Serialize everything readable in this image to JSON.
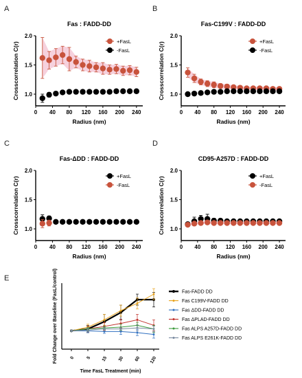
{
  "colors": {
    "red": "#c8533c",
    "red_band": "#f4c6d4",
    "black": "#000000",
    "e_black": "#000000",
    "e_yellow": "#e8a21a",
    "e_blue": "#2f6fc0",
    "e_red": "#c0302b",
    "e_green": "#3c9a3c",
    "e_gray": "#7a8aa0"
  },
  "chart_data": [
    {
      "panel": "A",
      "type": "scatter",
      "title": "Fas : FADD-DD",
      "xlabel": "Radius (nm)",
      "ylabel": "Crosscorrelation C(r)",
      "xlim": [
        0,
        255
      ],
      "ylim": [
        0.8,
        2.0
      ],
      "xticks": [
        0,
        40,
        80,
        120,
        160,
        200,
        240
      ],
      "yticks": [
        1.0,
        1.5,
        2.0
      ],
      "legend_position": "top-right",
      "series": [
        {
          "name": "+FasL",
          "color": "red",
          "x": [
            16,
            32,
            48,
            64,
            80,
            96,
            112,
            128,
            144,
            160,
            176,
            192,
            208,
            224,
            240,
            256
          ],
          "y": [
            1.62,
            1.58,
            1.63,
            1.67,
            1.6,
            1.55,
            1.5,
            1.48,
            1.46,
            1.44,
            1.42,
            1.43,
            1.4,
            1.41,
            1.38,
            1.38
          ],
          "err": [
            0.35,
            0.15,
            0.15,
            0.15,
            0.2,
            0.1,
            0.1,
            0.1,
            0.08,
            0.1,
            0.08,
            0.08,
            0.08,
            0.08,
            0.08,
            0.08
          ]
        },
        {
          "name": "-FasL",
          "color": "black",
          "x": [
            16,
            32,
            48,
            64,
            80,
            96,
            112,
            128,
            144,
            160,
            176,
            192,
            208,
            224,
            240,
            256
          ],
          "y": [
            0.93,
            0.99,
            1.01,
            1.03,
            1.04,
            1.04,
            1.04,
            1.04,
            1.04,
            1.04,
            1.04,
            1.05,
            1.05,
            1.05,
            1.05,
            1.06
          ],
          "err": [
            0.07,
            0.04,
            0.03,
            0.02,
            0.02,
            0.01,
            0.01,
            0.01,
            0.01,
            0.01,
            0.01,
            0.01,
            0.01,
            0.01,
            0.01,
            0.01
          ]
        }
      ]
    },
    {
      "panel": "B",
      "type": "scatter",
      "title": "Fas-C199V : FADD-DD",
      "xlabel": "Radius (nm)",
      "ylabel": "Crosscorrelation C(r)",
      "xlim": [
        0,
        255
      ],
      "ylim": [
        0.8,
        2.0
      ],
      "xticks": [
        0,
        40,
        80,
        120,
        160,
        200,
        240
      ],
      "yticks": [
        1.0,
        1.5,
        2.0
      ],
      "legend_position": "top-right",
      "series": [
        {
          "name": "+FasL",
          "color": "red",
          "x": [
            16,
            32,
            48,
            64,
            80,
            96,
            112,
            128,
            144,
            160,
            176,
            192,
            208,
            224,
            240,
            256
          ],
          "y": [
            1.37,
            1.27,
            1.21,
            1.18,
            1.16,
            1.14,
            1.13,
            1.12,
            1.11,
            1.1,
            1.1,
            1.1,
            1.1,
            1.09,
            1.09,
            1.09
          ],
          "err": [
            0.08,
            0.07,
            0.05,
            0.05,
            0.05,
            0.04,
            0.04,
            0.03,
            0.03,
            0.03,
            0.03,
            0.03,
            0.03,
            0.03,
            0.03,
            0.03
          ]
        },
        {
          "name": "-FasL",
          "color": "black",
          "x": [
            16,
            32,
            48,
            64,
            80,
            96,
            112,
            128,
            144,
            160,
            176,
            192,
            208,
            224,
            240,
            256
          ],
          "y": [
            1.0,
            1.01,
            1.02,
            1.03,
            1.04,
            1.04,
            1.05,
            1.05,
            1.05,
            1.05,
            1.05,
            1.05,
            1.05,
            1.05,
            1.05,
            1.05
          ],
          "err": [
            0.01,
            0.01,
            0.01,
            0.01,
            0.01,
            0.01,
            0.01,
            0.01,
            0.01,
            0.01,
            0.01,
            0.01,
            0.01,
            0.01,
            0.01,
            0.01
          ]
        }
      ]
    },
    {
      "panel": "C",
      "type": "scatter",
      "title": "Fas-ΔDD : FADD-DD",
      "xlabel": "Radius (nm)",
      "ylabel": "Crosscorrelation C(r)",
      "xlim": [
        0,
        255
      ],
      "ylim": [
        0.8,
        2.0
      ],
      "xticks": [
        0,
        40,
        80,
        120,
        160,
        200,
        240
      ],
      "yticks": [
        1.0,
        1.5,
        2.0
      ],
      "legend_position": "top-right",
      "series": [
        {
          "name": "+FasL",
          "color": "black",
          "x": [
            16,
            32,
            48,
            64,
            80,
            96,
            112,
            128,
            144,
            160,
            176,
            192,
            208,
            224,
            240,
            256
          ],
          "y": [
            1.17,
            1.18,
            1.12,
            1.12,
            1.12,
            1.12,
            1.12,
            1.12,
            1.12,
            1.12,
            1.12,
            1.12,
            1.12,
            1.12,
            1.12,
            1.12
          ],
          "err": [
            0.07,
            0.04,
            0.03,
            0.02,
            0.02,
            0.02,
            0.02,
            0.02,
            0.02,
            0.02,
            0.02,
            0.02,
            0.02,
            0.02,
            0.02,
            0.02
          ]
        },
        {
          "name": "-FasL",
          "color": "red",
          "x": [
            16,
            32
          ],
          "y": [
            1.09,
            1.1
          ],
          "err": [
            0.07,
            0.05
          ]
        }
      ]
    },
    {
      "panel": "D",
      "type": "scatter",
      "title": "CD95-A257D : FADD-DD",
      "xlabel": "Radius (nm)",
      "ylabel": "Crosscorrelation C(r)",
      "xlim": [
        0,
        255
      ],
      "ylim": [
        0.8,
        2.0
      ],
      "xticks": [
        0,
        40,
        80,
        120,
        160,
        200,
        240
      ],
      "yticks": [
        1.0,
        1.5,
        2.0
      ],
      "legend_position": "top-right",
      "series": [
        {
          "name": "+FasL",
          "color": "black",
          "x": [
            16,
            32,
            48,
            64,
            80,
            96,
            112,
            128,
            144,
            160,
            176,
            192,
            208,
            224,
            240,
            256
          ],
          "y": [
            1.08,
            1.13,
            1.17,
            1.17,
            1.14,
            1.14,
            1.13,
            1.13,
            1.13,
            1.13,
            1.13,
            1.13,
            1.13,
            1.13,
            1.13,
            1.13
          ],
          "err": [
            0.03,
            0.07,
            0.06,
            0.08,
            0.04,
            0.03,
            0.03,
            0.03,
            0.03,
            0.03,
            0.03,
            0.03,
            0.03,
            0.03,
            0.03,
            0.03
          ]
        },
        {
          "name": "-FasL",
          "color": "red",
          "x": [
            16,
            32,
            48,
            64,
            80,
            96,
            112,
            128,
            144,
            160,
            176,
            192,
            208,
            224,
            240,
            256
          ],
          "y": [
            1.07,
            1.09,
            1.1,
            1.11,
            1.1,
            1.1,
            1.1,
            1.1,
            1.1,
            1.1,
            1.1,
            1.1,
            1.1,
            1.1,
            1.1,
            1.1
          ],
          "err": [
            0.02,
            0.02,
            0.02,
            0.02,
            0.02,
            0.02,
            0.02,
            0.02,
            0.02,
            0.02,
            0.02,
            0.02,
            0.02,
            0.02,
            0.02,
            0.02
          ]
        }
      ]
    },
    {
      "panel": "E",
      "type": "line",
      "title": "",
      "xlabel": "Time FasL Treatment (min)",
      "ylabel": "Fold Change over Baseline (FasL/control)",
      "categories": [
        "0",
        "5",
        "15",
        "30",
        "60",
        "120"
      ],
      "ylim": [
        0.5,
        2.3
      ],
      "legend_position": "right",
      "series": [
        {
          "name": "Fas-FADD DD",
          "color": "e_black",
          "bold": true,
          "values": [
            1.0,
            1.05,
            1.25,
            1.5,
            1.85,
            1.85
          ],
          "err": [
            0.02,
            0.1,
            0.2,
            0.2,
            0.15,
            0.2
          ]
        },
        {
          "name": "Fas C199V-FADD DD",
          "color": "e_yellow",
          "values": [
            1.0,
            1.1,
            1.3,
            1.55,
            1.75,
            2.0
          ],
          "err": [
            0.02,
            0.08,
            0.15,
            0.15,
            0.15,
            0.15
          ]
        },
        {
          "name": "Fas ΔDD-FADD DD",
          "color": "e_blue",
          "values": [
            1.0,
            1.0,
            0.98,
            0.98,
            0.95,
            0.9
          ],
          "err": [
            0.02,
            0.05,
            0.05,
            0.08,
            0.08,
            0.1
          ]
        },
        {
          "name": "Fas ΔPLAD-FADD DD",
          "color": "e_red",
          "values": [
            1.0,
            1.05,
            1.12,
            1.2,
            1.3,
            1.15
          ],
          "err": [
            0.02,
            0.08,
            0.1,
            0.12,
            0.15,
            0.15
          ]
        },
        {
          "name": "Fas ALPS A257D-FADD DD",
          "color": "e_green",
          "values": [
            1.0,
            1.05,
            1.08,
            1.1,
            1.15,
            1.05
          ],
          "err": [
            0.02,
            0.05,
            0.05,
            0.08,
            0.08,
            0.1
          ]
        },
        {
          "name": "Fas ALPS E261K-FADD DD",
          "color": "e_gray",
          "values": [
            1.0,
            1.02,
            1.05,
            1.05,
            1.08,
            1.05
          ],
          "err": [
            0.02,
            0.05,
            0.05,
            0.05,
            0.08,
            0.08
          ]
        }
      ]
    }
  ]
}
